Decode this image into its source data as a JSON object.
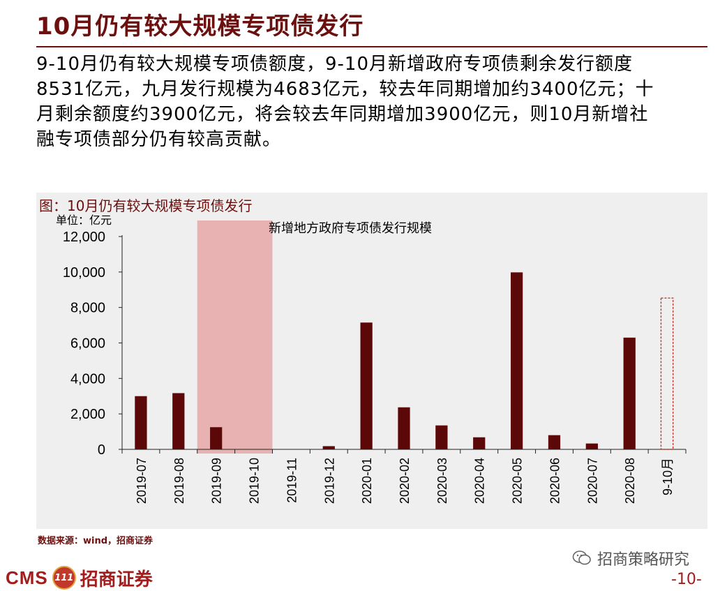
{
  "header": {
    "title": "10月仍有较大规模专项债发行"
  },
  "summary": {
    "lines": [
      "9-10月仍有较大规模专项债额度，9-10月新增政府专项债剩余发行额度",
      "8531亿元，九月发行规模为4683亿元，较去年同期增加约3400亿元；十",
      "月剩余额度约3900亿元，将会较去年同期增加3900亿元，则10月新增社",
      "融专项债部分仍有较高贡献。"
    ]
  },
  "chart_title": "图：10月仍有较大规模专项债发行",
  "chart_data": {
    "type": "bar",
    "title": "新增地方政府专项债发行规模",
    "unit_label": "单位：亿元",
    "categories": [
      "2019-07",
      "2019-08",
      "2019-09",
      "2019-10",
      "2019-11",
      "2019-12",
      "2020-01",
      "2020-02",
      "2020-03",
      "2020-04",
      "2020-05",
      "2020-06",
      "2020-07",
      "2020-08",
      "9-10月"
    ],
    "values": [
      3000,
      3170,
      1250,
      0,
      0,
      180,
      7150,
      2370,
      1350,
      680,
      9980,
      800,
      330,
      6300,
      8531
    ],
    "ylim": [
      0,
      12000
    ],
    "yticks": [
      "0",
      "2,000",
      "4,000",
      "6,000",
      "8,000",
      "10,000",
      "12,000"
    ],
    "ytick_values": [
      0,
      2000,
      4000,
      6000,
      8000,
      10000,
      12000
    ],
    "highlight_categories": [
      "2019-09",
      "2019-10"
    ],
    "dashed_categories": [
      "9-10月"
    ],
    "grid": false,
    "colors": {
      "bar": "#5c0808",
      "highlight": "#e8b2b2",
      "dashed": "#c0392b"
    }
  },
  "footer": {
    "source": "数据来源：wind，招商证券",
    "brand_en": "CMS",
    "brand_cn": "招商证券",
    "brand_emblem": "111",
    "wechat_account": "招商策略研究",
    "page_number": "-10-"
  }
}
